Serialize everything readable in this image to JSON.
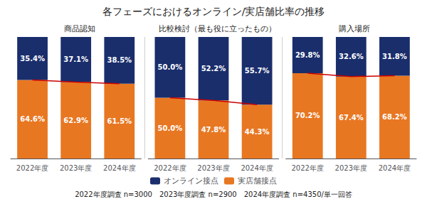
{
  "chart_data": {
    "type": "bar",
    "title": "各フェーズにおけるオンライン/実店舗比率の推移",
    "footnote": "2022年度調査 n=3000　2023年度調査 n=2900　2024年度調査 n=4350/単一回答",
    "groups": [
      {
        "label": "商品認知",
        "categories": [
          "2022年度",
          "2023年度",
          "2024年度"
        ]
      },
      {
        "label": "比較検討（最も役に立ったもの）",
        "categories": [
          "2022年度",
          "2023年度",
          "2024年度"
        ]
      },
      {
        "label": "購入場所",
        "categories": [
          "2022年度",
          "2023年度",
          "2024年度"
        ]
      }
    ],
    "series": [
      {
        "name": "オンライン接点",
        "color": "#1a2e6c",
        "values": [
          35.4,
          37.1,
          38.5,
          50.0,
          52.2,
          55.7,
          29.8,
          32.6,
          31.8
        ],
        "value_labels": [
          "35.4%",
          "37.1%",
          "38.5%",
          "50.0%",
          "52.2%",
          "55.7%",
          "29.8%",
          "32.6%",
          "31.8%"
        ]
      },
      {
        "name": "実店舗接点",
        "color": "#e87722",
        "values": [
          64.6,
          62.9,
          61.5,
          50.0,
          47.8,
          44.3,
          70.2,
          67.4,
          68.2
        ],
        "value_labels": [
          "64.6%",
          "62.9%",
          "61.5%",
          "50.0%",
          "47.8%",
          "44.3%",
          "70.2%",
          "67.4%",
          "68.2%"
        ]
      },
      {
        "type": "line",
        "color": "#cc0000",
        "values": [
          64.6,
          62.9,
          61.5,
          50.0,
          47.8,
          44.3,
          70.2,
          67.4,
          68.2
        ]
      }
    ],
    "stacked": true,
    "data_labels": true,
    "ylim": [
      0,
      100
    ],
    "tick_labels": "x",
    "grid": false,
    "legend": "bottom"
  }
}
